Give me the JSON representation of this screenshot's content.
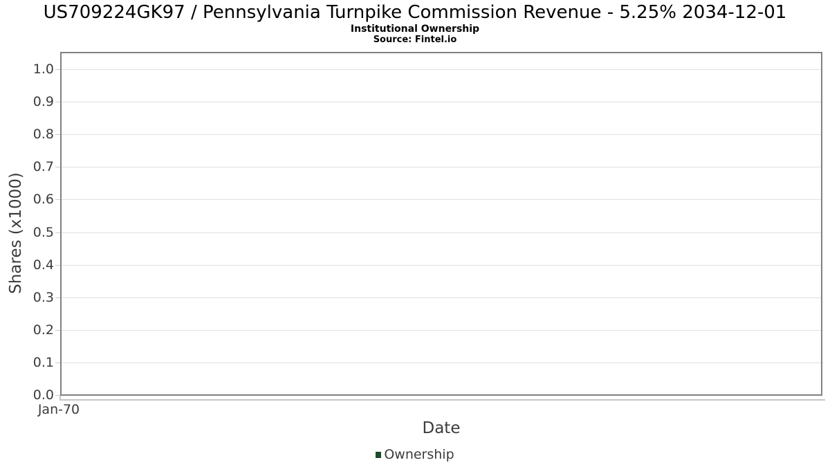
{
  "header": {
    "title": "US709224GK97 / Pennsylvania Turnpike Commission Revenue - 5.25% 2034-12-01",
    "subtitle": "Institutional Ownership",
    "source": "Source: Fintel.io"
  },
  "chart_data": {
    "type": "line",
    "title": "US709224GK97 / Pennsylvania Turnpike Commission Revenue - 5.25% 2034-12-01",
    "subtitle": "Institutional Ownership",
    "source": "Source: Fintel.io",
    "xlabel": "Date",
    "ylabel": "Shares (x1000)",
    "ylim": [
      0.0,
      1.05
    ],
    "yticks": [
      "0.0",
      "0.1",
      "0.2",
      "0.3",
      "0.4",
      "0.5",
      "0.6",
      "0.7",
      "0.8",
      "0.9",
      "1.0"
    ],
    "xticks": [
      "Jan-70"
    ],
    "grid": "horizontal",
    "legend": {
      "position": "bottom",
      "entries": [
        {
          "label": "Ownership",
          "color": "#1c4a2a"
        }
      ]
    },
    "series": [
      {
        "name": "Ownership",
        "x": [],
        "y": []
      }
    ],
    "colors": {
      "plot_border": "#808080",
      "gridline": "#e0e0e0",
      "axis_line": "#c6c6c6",
      "axis_text": "#3b3b3b",
      "title_text": "#000000"
    }
  }
}
